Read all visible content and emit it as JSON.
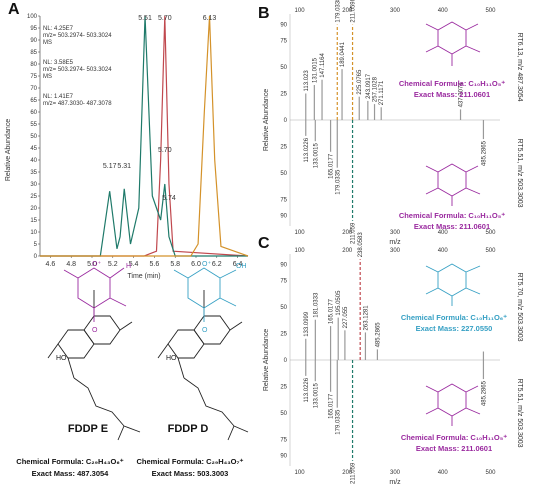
{
  "panels": {
    "A": "A",
    "B": "B",
    "C": "C"
  },
  "chart_data": [
    {
      "type": "line",
      "xlabel": "Time (min)",
      "ylabel": "Relative Abundance",
      "xlim": [
        4.5,
        6.5
      ],
      "ylim": [
        0,
        100
      ],
      "x_ticks": [
        "4.6",
        "4.8",
        "5.0",
        "5.2",
        "5.4",
        "5.6",
        "5.8",
        "6.0",
        "6.2",
        "6.4"
      ],
      "y_ticks": [
        "0",
        "5",
        "10",
        "15",
        "20",
        "25",
        "30",
        "35",
        "40",
        "45",
        "50",
        "55",
        "60",
        "65",
        "70",
        "75",
        "80",
        "85",
        "90",
        "95",
        "100"
      ],
      "series": [
        {
          "name": "NL: 4.25E7 m/z= 503.2974- 503.3024 MS",
          "color": "#c0484e",
          "x": [
            4.5,
            5.5,
            5.62,
            5.66,
            5.7,
            5.74,
            5.78,
            6.5
          ],
          "y": [
            0,
            0,
            2,
            40,
            100,
            30,
            2,
            0
          ]
        },
        {
          "name": "NL: 3.58E5 m/z= 503.2974- 503.3024 MS",
          "color": "#1f7a6a",
          "x": [
            4.5,
            5.08,
            5.17,
            5.24,
            5.27,
            5.31,
            5.37,
            5.45,
            5.51,
            5.58,
            5.66,
            5.7,
            5.74,
            5.8,
            6.5
          ],
          "y": [
            0,
            0,
            27,
            3,
            8,
            28,
            5,
            20,
            100,
            25,
            15,
            30,
            8,
            0,
            0
          ]
        },
        {
          "name": "NL: 1.41E7 m/z= 487.3030- 487.3078",
          "color": "#d4922a",
          "x": [
            4.5,
            5.95,
            6.02,
            6.08,
            6.13,
            6.18,
            6.24,
            6.5
          ],
          "y": [
            0,
            0,
            5,
            60,
            100,
            40,
            4,
            0
          ]
        }
      ],
      "peak_labels": [
        {
          "x": 5.17,
          "label": "5.17",
          "color": "#333"
        },
        {
          "x": 5.31,
          "label": "5.31",
          "color": "#333"
        },
        {
          "x": 5.51,
          "label": "5.51",
          "color": "#1f7a6a"
        },
        {
          "x": 5.7,
          "label": "5.70",
          "color": "#c0484e"
        },
        {
          "x": 5.7,
          "label": "5.70",
          "color": "#1f7a6a"
        },
        {
          "x": 5.74,
          "label": "5.74",
          "color": "#333"
        },
        {
          "x": 6.13,
          "label": "6.13",
          "color": "#d4922a"
        }
      ]
    },
    {
      "type": "bar",
      "xlabel": "m/z",
      "ylabel": "Relative Abundance",
      "xlim": [
        80,
        520
      ],
      "x_ticks": [
        "100",
        "200",
        "300",
        "400",
        "500"
      ],
      "y_ticks": [
        "0",
        "25",
        "50",
        "75",
        "90"
      ],
      "right_labels": [
        "RT6.13, m/z 487.3054",
        "RT5.51, m/z 503.3003"
      ],
      "right_colors": [
        "#d4922a",
        "#1f7a6a"
      ],
      "top_series": [
        {
          "mz": 113.023,
          "v": 25
        },
        {
          "mz": 131.0015,
          "v": 33
        },
        {
          "mz": 147.1164,
          "v": 38
        },
        {
          "mz": 179.0338,
          "v": 90
        },
        {
          "mz": 211.0598,
          "v": 90
        },
        {
          "mz": 189.0441,
          "v": 48
        },
        {
          "mz": 225.0765,
          "v": 22
        },
        {
          "mz": 243.0917,
          "v": 18
        },
        {
          "mz": 257.1028,
          "v": 15
        },
        {
          "mz": 271.1171,
          "v": 12
        },
        {
          "mz": 437.3074,
          "v": 10
        }
      ],
      "bottom_series": [
        {
          "mz": 113.0226,
          "v": 15
        },
        {
          "mz": 133.0015,
          "v": 20
        },
        {
          "mz": 165.0177,
          "v": 30
        },
        {
          "mz": 179.0335,
          "v": 45
        },
        {
          "mz": 211.059,
          "v": 95
        },
        {
          "mz": 485.2865,
          "v": 18
        }
      ],
      "labels_top": [
        "113.023",
        "131.0015",
        "147.1164",
        "179.0338",
        "211.0598",
        "189.0441",
        "225.0765",
        "243.0917",
        "257.1028",
        "271.1171",
        "437.3074"
      ],
      "labels_bottom": [
        "113.0226",
        "133.0015",
        "165.0177",
        "179.0335",
        "211.059",
        "485.2865"
      ]
    },
    {
      "type": "bar",
      "xlabel": "m/z",
      "ylabel": "Relative Abundance",
      "xlim": [
        80,
        520
      ],
      "x_ticks": [
        "100",
        "200",
        "300",
        "400",
        "500"
      ],
      "y_ticks": [
        "0",
        "25",
        "50",
        "75",
        "90"
      ],
      "right_labels": [
        "RT5.70, m/z 503.3003",
        "RT5.51, m/z 503.3003"
      ],
      "right_colors": [
        "#c0484e",
        "#1f7a6a"
      ],
      "top_series": [
        {
          "mz": 113.0226,
          "v": 20
        },
        {
          "mz": 133.0999,
          "v": 38
        },
        {
          "mz": 165.0177,
          "v": 32
        },
        {
          "mz": 181.0333,
          "v": 40
        },
        {
          "mz": 195.0505,
          "v": 28
        },
        {
          "mz": 227.055,
          "v": 95
        },
        {
          "mz": 238.0583,
          "v": 26
        },
        {
          "mz": 263.1281,
          "v": 10
        },
        {
          "mz": 485.2865,
          "v": 8
        }
      ],
      "bottom_series": [
        {
          "mz": 113.0226,
          "v": 15
        },
        {
          "mz": 133.0015,
          "v": 20
        },
        {
          "mz": 165.0177,
          "v": 30
        },
        {
          "mz": 179.0335,
          "v": 45
        },
        {
          "mz": 211.059,
          "v": 95
        },
        {
          "mz": 485.2865,
          "v": 18
        }
      ],
      "labels_top": [
        "133.0999",
        "181.0333",
        "165.0177",
        "195.0505",
        "227.055",
        "238.0583",
        "263.1281",
        "485.2865"
      ],
      "labels_bottom": [
        "113.0226",
        "133.0015",
        "165.0177",
        "179.0335",
        "211.059",
        "485.2865"
      ]
    }
  ],
  "structures": {
    "E_name": "FDDP E",
    "D_name": "FDDP D",
    "E_formula": "Chemical Formula: C₂₉H₄₃O₆⁺",
    "E_mass": "Exact Mass: 487.3054",
    "D_formula": "Chemical Formula: C₂₉H₄₃O₇⁺",
    "D_mass": "Exact Mass: 503.3003"
  },
  "fragments": {
    "B_top_formula": "Chemical Formula: C₁₀H₁₁O₅⁺",
    "B_top_mass": "Exact Mass: 211.0601",
    "B_bottom_formula": "Chemical Formula: C₁₀H₁₁O₅⁺",
    "B_bottom_mass": "Exact Mass: 211.0601",
    "C_top_formula": "Chemical Formula: C₁₀H₁₁O₆⁺",
    "C_top_mass": "Exact Mass: 227.0550",
    "C_bottom_formula": "Chemical Formula: C₁₀H₁₁O₅⁺",
    "C_bottom_mass": "Exact Mass: 211.0601"
  },
  "colors": {
    "purple": "#9a2a9f",
    "teal": "#1f7a6a",
    "cyan": "#36a0c4",
    "orange": "#d4922a",
    "red": "#c0484e",
    "gray": "#888888"
  }
}
